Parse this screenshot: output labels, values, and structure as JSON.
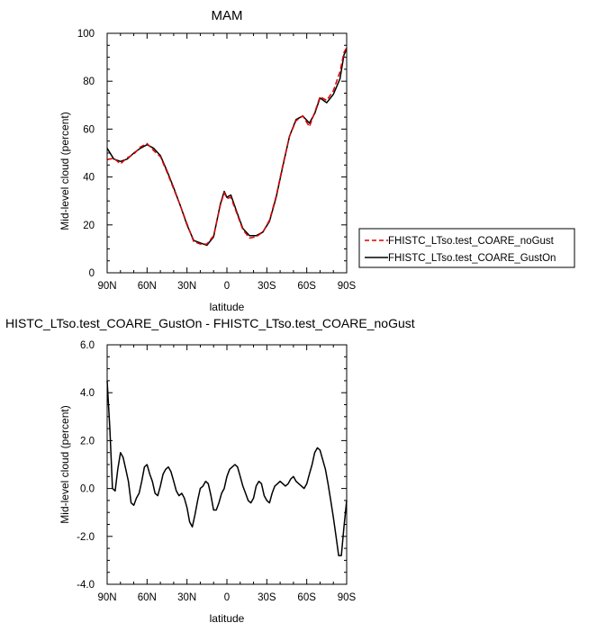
{
  "chart_data": [
    {
      "type": "line",
      "title": "MAM",
      "xlabel": "latitude",
      "ylabel": "Mid-level cloud (percent)",
      "xlim": [
        90,
        -90
      ],
      "ylim": [
        0,
        100
      ],
      "x_ticks": [
        90,
        60,
        30,
        0,
        -30,
        -60,
        -90
      ],
      "x_tick_labels": [
        "90N",
        "60N",
        "30N",
        "0",
        "30S",
        "60S",
        "90S"
      ],
      "y_ticks": [
        0,
        20,
        40,
        60,
        80,
        100
      ],
      "y_tick_labels": [
        "0",
        "20",
        "40",
        "60",
        "80",
        "100"
      ],
      "legend_position": "right",
      "x": [
        90,
        85,
        80,
        75,
        70,
        65,
        60,
        55,
        50,
        45,
        40,
        35,
        30,
        25,
        20,
        15,
        10,
        5,
        2,
        0,
        -3,
        -8,
        -12,
        -17,
        -22,
        -27,
        -32,
        -37,
        -42,
        -47,
        -52,
        -57,
        -62,
        -66,
        -70,
        -75,
        -80,
        -85,
        -88,
        -90
      ],
      "series": [
        {
          "name": "FHISTC_LTso.test_COARE_noGust",
          "color": "#e00000",
          "dash": "dashed",
          "values": [
            47.3,
            47.8,
            45.5,
            48.0,
            49.5,
            52.5,
            54.0,
            51.0,
            48.5,
            42.0,
            35.0,
            28.0,
            20.5,
            13.0,
            12.0,
            12.0,
            15.5,
            28.0,
            33.5,
            31.0,
            31.5,
            24.0,
            18.0,
            14.5,
            15.0,
            17.0,
            22.0,
            32.0,
            45.0,
            57.0,
            63.5,
            65.5,
            61.0,
            67.0,
            73.5,
            72.0,
            76.0,
            84.0,
            92.0,
            94.0
          ]
        },
        {
          "name": "FHISTC_LTso.test_COARE_GustOn",
          "color": "#000000",
          "dash": "solid",
          "values": [
            52.0,
            47.5,
            46.5,
            47.5,
            50.0,
            52.0,
            53.5,
            52.0,
            49.0,
            42.5,
            35.5,
            28.0,
            20.0,
            13.5,
            12.5,
            11.5,
            15.0,
            28.5,
            34.0,
            31.5,
            32.5,
            24.5,
            18.5,
            15.5,
            15.5,
            17.0,
            21.5,
            31.5,
            44.5,
            57.0,
            64.0,
            65.5,
            62.5,
            66.5,
            73.0,
            71.0,
            74.5,
            81.0,
            91.0,
            93.5
          ]
        }
      ]
    },
    {
      "type": "line",
      "title": "HISTC_LTso.test_COARE_GustOn - FHISTC_LTso.test_COARE_noGust",
      "xlabel": "latitude",
      "ylabel": "Mid-level cloud (percent)",
      "xlim": [
        90,
        -90
      ],
      "ylim": [
        -4.0,
        6.0
      ],
      "x_ticks": [
        90,
        60,
        30,
        0,
        -30,
        -60,
        -90
      ],
      "x_tick_labels": [
        "90N",
        "60N",
        "30N",
        "0",
        "30S",
        "60S",
        "90S"
      ],
      "y_ticks": [
        -4,
        -2,
        0,
        2,
        4,
        6
      ],
      "y_tick_labels": [
        "-4.0",
        "-2.0",
        "0.0",
        "2.0",
        "4.0",
        "6.0"
      ],
      "x": [
        90,
        88,
        86,
        84,
        82,
        80,
        78,
        76,
        74,
        72,
        70,
        68,
        66,
        64,
        62,
        60,
        58,
        56,
        54,
        52,
        50,
        48,
        46,
        44,
        42,
        40,
        38,
        36,
        34,
        32,
        30,
        28,
        26,
        24,
        22,
        20,
        18,
        16,
        14,
        12,
        10,
        8,
        6,
        4,
        2,
        0,
        -2,
        -4,
        -6,
        -8,
        -10,
        -12,
        -14,
        -16,
        -18,
        -20,
        -22,
        -24,
        -26,
        -28,
        -30,
        -32,
        -34,
        -36,
        -38,
        -40,
        -42,
        -44,
        -46,
        -48,
        -50,
        -52,
        -54,
        -56,
        -58,
        -60,
        -62,
        -64,
        -66,
        -68,
        -70,
        -72,
        -74,
        -76,
        -78,
        -80,
        -82,
        -84,
        -86,
        -88,
        -90
      ],
      "series": [
        {
          "name": "",
          "color": "#000000",
          "dash": "solid",
          "values": [
            4.5,
            2.5,
            0.0,
            -0.1,
            0.8,
            1.5,
            1.3,
            0.8,
            0.3,
            -0.6,
            -0.7,
            -0.4,
            -0.2,
            0.3,
            0.9,
            1.0,
            0.6,
            0.3,
            -0.2,
            -0.3,
            0.1,
            0.6,
            0.8,
            0.9,
            0.7,
            0.3,
            -0.1,
            -0.3,
            -0.2,
            -0.4,
            -0.8,
            -1.4,
            -1.6,
            -1.1,
            -0.5,
            0.0,
            0.1,
            0.3,
            0.2,
            -0.3,
            -0.9,
            -0.9,
            -0.6,
            -0.2,
            0.0,
            0.5,
            0.8,
            0.9,
            1.0,
            0.9,
            0.5,
            0.1,
            -0.2,
            -0.5,
            -0.6,
            -0.4,
            0.1,
            0.3,
            0.2,
            -0.3,
            -0.5,
            -0.6,
            -0.2,
            0.1,
            0.2,
            0.3,
            0.2,
            0.1,
            0.2,
            0.4,
            0.5,
            0.3,
            0.2,
            0.1,
            0.0,
            0.2,
            0.6,
            1.0,
            1.5,
            1.7,
            1.6,
            1.2,
            0.8,
            0.2,
            -0.5,
            -1.2,
            -2.0,
            -2.8,
            -2.8,
            -1.6,
            -0.5
          ]
        }
      ]
    }
  ]
}
